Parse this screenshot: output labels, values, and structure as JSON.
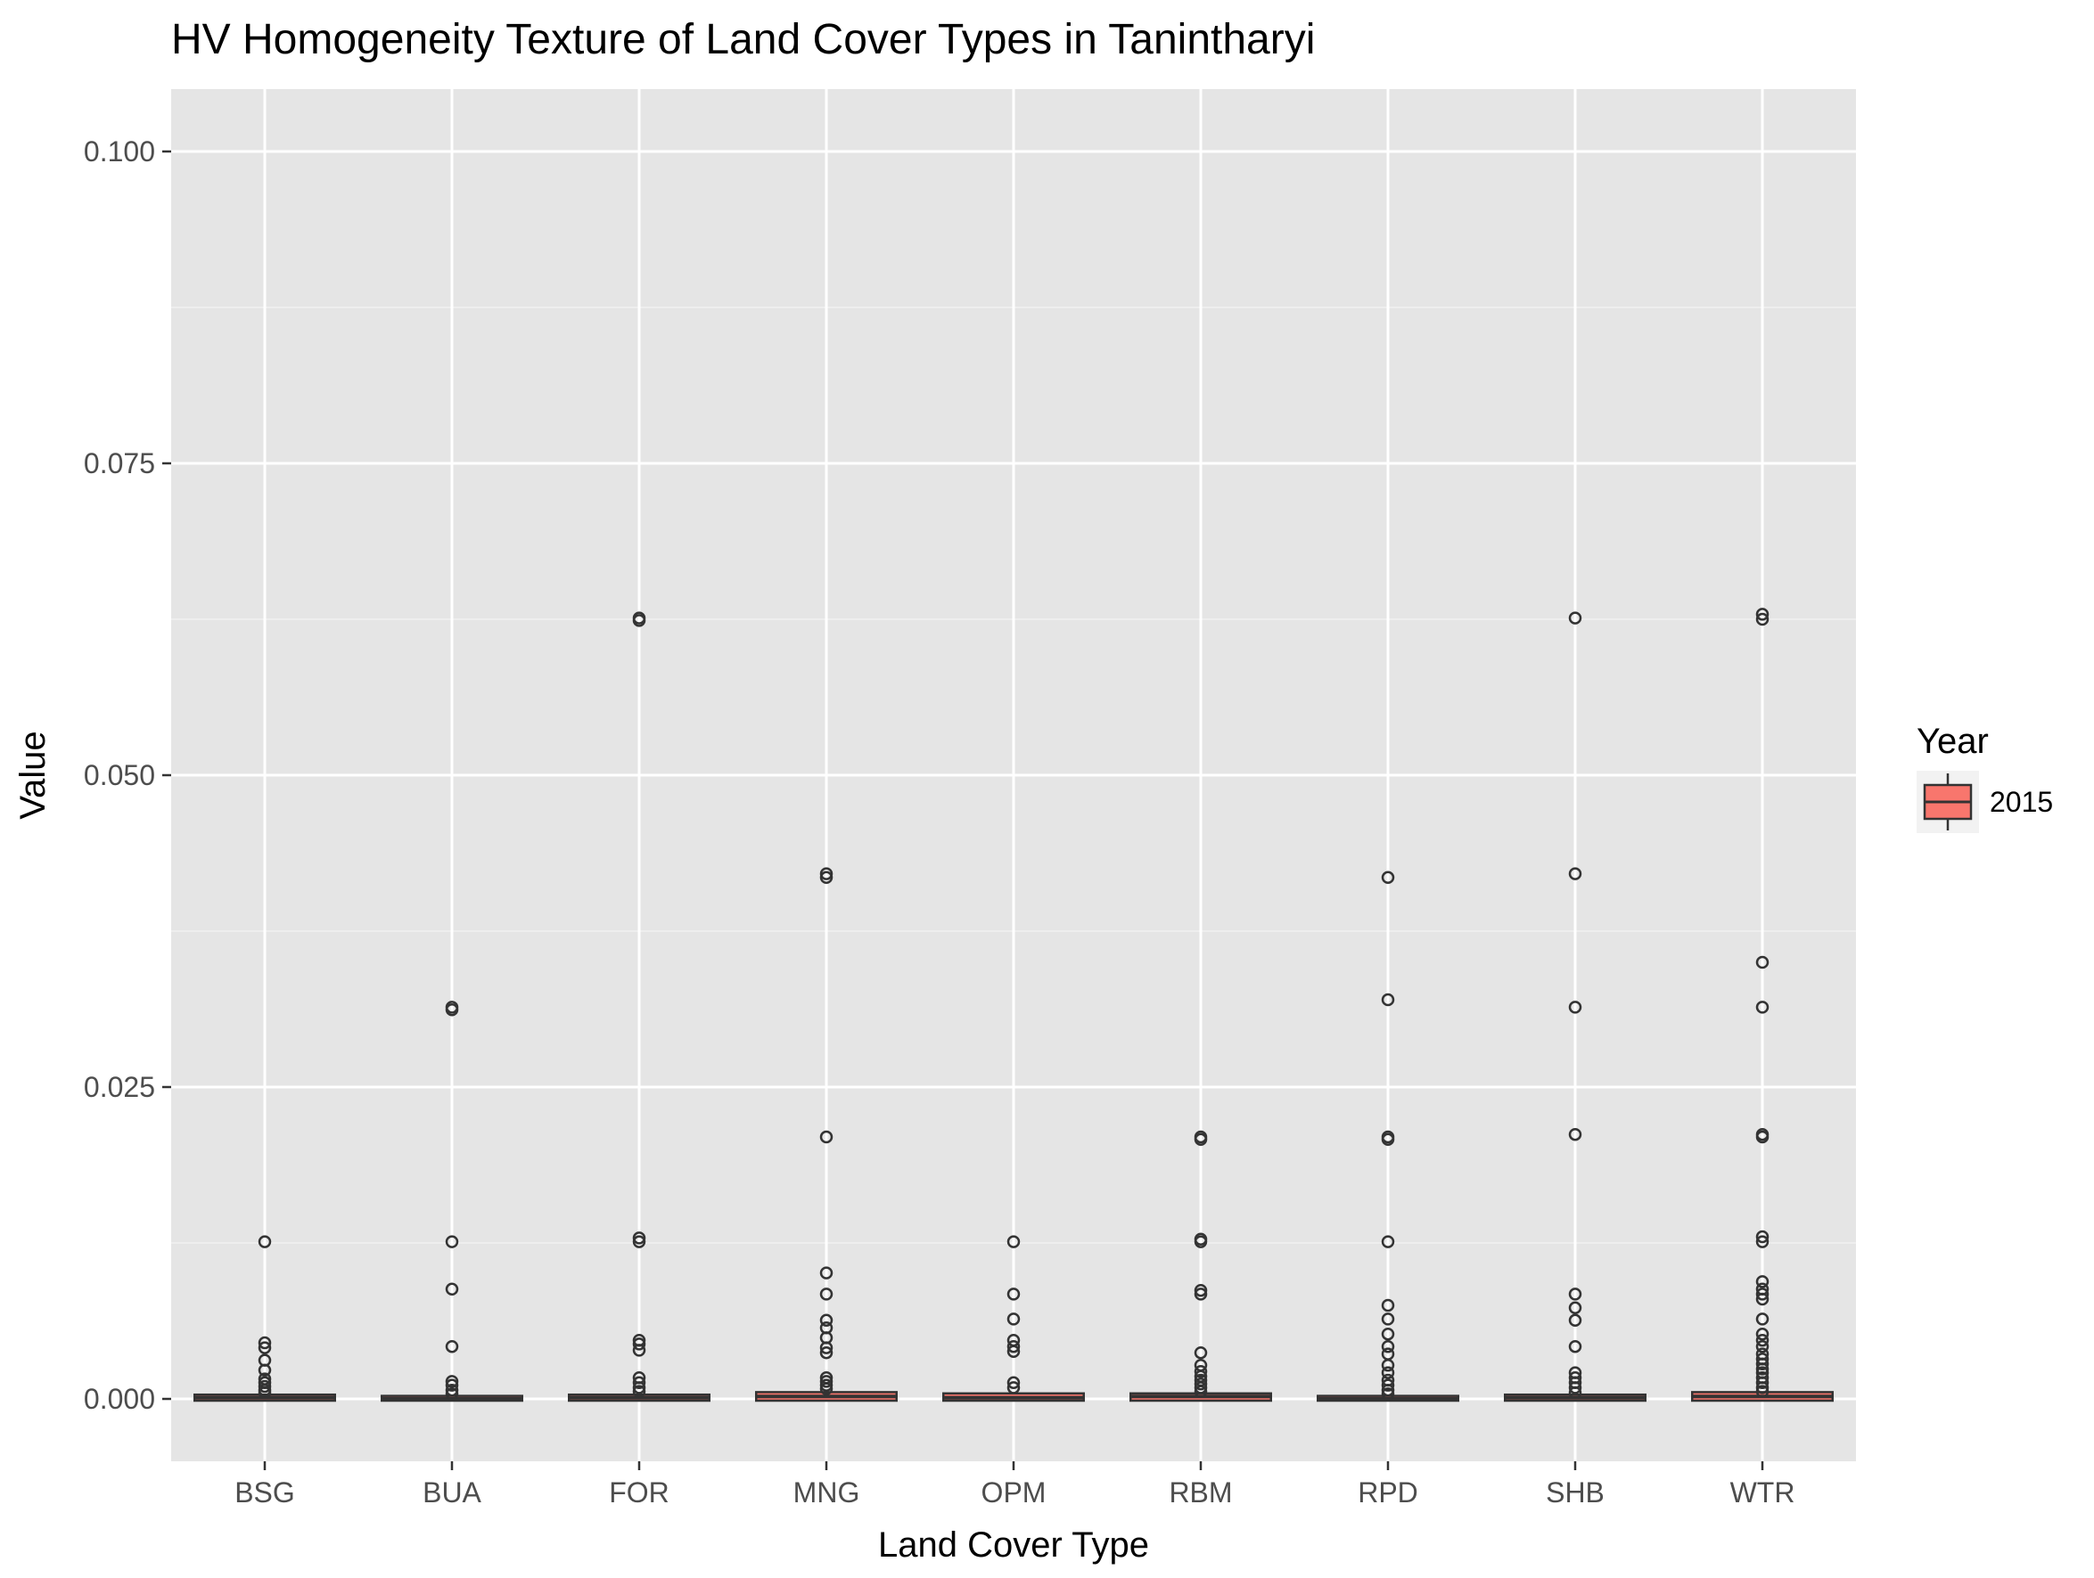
{
  "chart_data": {
    "type": "boxplot",
    "title": "HV Homogeneity Texture of Land Cover Types in Tanintharyi",
    "xlabel": "Land Cover Type",
    "ylabel": "Value",
    "ylim": [
      -0.005,
      0.105
    ],
    "yticks": [
      0.0,
      0.025,
      0.05,
      0.075,
      0.1
    ],
    "ytick_labels": [
      "0.000",
      "0.025",
      "0.050",
      "0.075",
      "0.100"
    ],
    "grid": true,
    "legend": {
      "title": "Year",
      "position": "right",
      "entries": [
        {
          "label": "2015",
          "color": "#F8766D"
        }
      ]
    },
    "fill_color": "#F8766D",
    "panel_color": "#E5E5E5",
    "categories": [
      "BSG",
      "BUA",
      "FOR",
      "MNG",
      "OPM",
      "RBM",
      "RPD",
      "SHB",
      "WTR"
    ],
    "boxes": [
      {
        "category": "BSG",
        "q1": 0.0,
        "median": 0.0001,
        "q3": 0.0002,
        "outliers": [
          0.0126,
          0.0045,
          0.0041,
          0.0031,
          0.0023,
          0.0016,
          0.0013,
          0.001,
          0.0007,
          0.0005
        ]
      },
      {
        "category": "BUA",
        "q1": 0.0,
        "median": 0.0,
        "q3": 0.0001,
        "outliers": [
          0.0314,
          0.0312,
          0.0126,
          0.0088,
          0.0042,
          0.0014,
          0.0011,
          0.0007,
          0.0004
        ]
      },
      {
        "category": "FOR",
        "q1": 0.0,
        "median": 0.0001,
        "q3": 0.0002,
        "outliers": [
          0.0626,
          0.0624,
          0.0129,
          0.0126,
          0.0047,
          0.0044,
          0.0039,
          0.0017,
          0.0013,
          0.0009,
          0.0006
        ]
      },
      {
        "category": "MNG",
        "q1": 0.0,
        "median": 0.0002,
        "q3": 0.0004,
        "outliers": [
          0.0421,
          0.0418,
          0.021,
          0.0101,
          0.0084,
          0.0063,
          0.0057,
          0.0049,
          0.0041,
          0.0037,
          0.0017,
          0.0014,
          0.0011,
          0.0008
        ]
      },
      {
        "category": "OPM",
        "q1": 0.0,
        "median": 0.0001,
        "q3": 0.0003,
        "outliers": [
          0.0126,
          0.0084,
          0.0064,
          0.0047,
          0.0042,
          0.0038,
          0.0013,
          0.0009
        ]
      },
      {
        "category": "RBM",
        "q1": 0.0,
        "median": 0.0002,
        "q3": 0.0003,
        "outliers": [
          0.021,
          0.0208,
          0.0128,
          0.0126,
          0.0087,
          0.0084,
          0.0037,
          0.0027,
          0.0022,
          0.0018,
          0.0015,
          0.0012,
          0.0009,
          0.0006
        ]
      },
      {
        "category": "RPD",
        "q1": 0.0,
        "median": 0.0,
        "q3": 0.0001,
        "outliers": [
          0.0418,
          0.032,
          0.021,
          0.0208,
          0.0126,
          0.0075,
          0.0064,
          0.0052,
          0.0042,
          0.0036,
          0.0027,
          0.0021,
          0.0015,
          0.0011,
          0.0007,
          0.0004
        ]
      },
      {
        "category": "SHB",
        "q1": 0.0,
        "median": 0.0001,
        "q3": 0.0002,
        "outliers": [
          0.0626,
          0.0421,
          0.0314,
          0.0212,
          0.0084,
          0.0073,
          0.0063,
          0.0042,
          0.0021,
          0.0017,
          0.0013,
          0.0009,
          0.0005
        ]
      },
      {
        "category": "WTR",
        "q1": 0.0,
        "median": 0.0002,
        "q3": 0.0004,
        "outliers": [
          0.0629,
          0.0625,
          0.035,
          0.0314,
          0.0212,
          0.021,
          0.013,
          0.0126,
          0.0094,
          0.0088,
          0.0084,
          0.008,
          0.0064,
          0.0052,
          0.0047,
          0.0042,
          0.0036,
          0.0032,
          0.0028,
          0.0024,
          0.0021,
          0.0017,
          0.0013,
          0.0009,
          0.0006
        ]
      }
    ]
  }
}
